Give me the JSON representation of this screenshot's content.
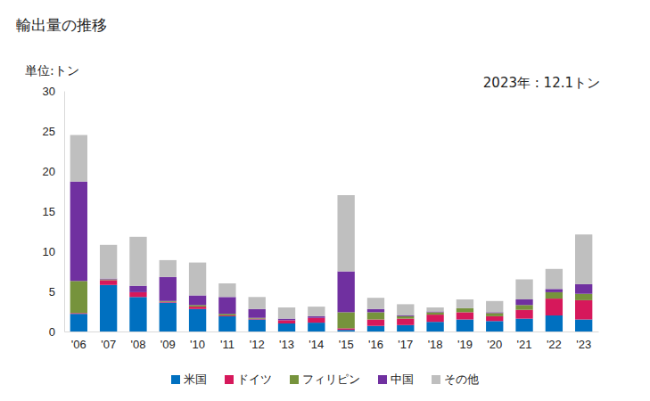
{
  "chart_data": {
    "type": "bar",
    "stacked": true,
    "title": "輸出量の推移",
    "y_label": "単位:トン",
    "annotation": "2023年 : 12.1トン",
    "categories": [
      "'06",
      "'07",
      "'08",
      "'09",
      "'10",
      "'11",
      "'12",
      "'13",
      "'14",
      "'15",
      "'16",
      "'17",
      "'18",
      "'19",
      "'20",
      "'21",
      "'22",
      "'23"
    ],
    "series": [
      {
        "name": "米国",
        "color": "#0070c0",
        "values": [
          2.2,
          5.8,
          4.3,
          3.6,
          2.8,
          1.9,
          1.5,
          1.0,
          1.1,
          0.2,
          0.7,
          0.8,
          1.2,
          1.5,
          1.3,
          1.6,
          2.0,
          1.5
        ]
      },
      {
        "name": "ドイツ",
        "color": "#d6185b",
        "values": [
          0.1,
          0.6,
          0.6,
          0.1,
          0.3,
          0.1,
          0.1,
          0.4,
          0.6,
          0.2,
          0.8,
          0.8,
          0.9,
          0.9,
          0.6,
          1.1,
          2.1,
          2.4
        ]
      },
      {
        "name": "フィリピン",
        "color": "#76933c",
        "values": [
          4.0,
          0.1,
          0.0,
          0.1,
          0.2,
          0.2,
          0.1,
          0.0,
          0.0,
          2.0,
          0.9,
          0.3,
          0.3,
          0.5,
          0.4,
          0.6,
          0.8,
          0.8
        ]
      },
      {
        "name": "中国",
        "color": "#7030a0",
        "values": [
          12.4,
          0.1,
          0.8,
          3.0,
          1.2,
          2.1,
          1.1,
          0.2,
          0.2,
          5.1,
          0.4,
          0.1,
          0.1,
          0.0,
          0.1,
          0.7,
          0.4,
          1.2
        ]
      },
      {
        "name": "その他",
        "color": "#bfbfbf",
        "values": [
          5.8,
          4.2,
          6.1,
          2.1,
          4.1,
          1.7,
          1.5,
          1.4,
          1.2,
          9.5,
          1.4,
          1.4,
          0.5,
          1.1,
          1.4,
          2.5,
          2.5,
          6.2
        ]
      }
    ],
    "ylim": [
      0,
      30
    ],
    "yticks": [
      0,
      5,
      10,
      15,
      20,
      25,
      30
    ],
    "grid": false,
    "legend": "bottom"
  }
}
